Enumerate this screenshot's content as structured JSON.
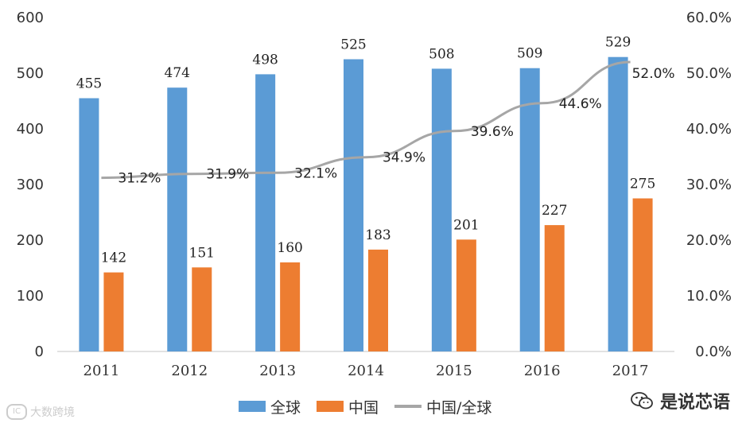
{
  "chart_data": {
    "type": "bar",
    "categories": [
      "2011",
      "2012",
      "2013",
      "2014",
      "2015",
      "2016",
      "2017"
    ],
    "series": [
      {
        "name": "全球",
        "type": "bar",
        "axis": "left",
        "color": "#5b9bd5",
        "values": [
          455,
          474,
          498,
          525,
          508,
          509,
          529
        ],
        "labels": [
          "455",
          "474",
          "498",
          "525",
          "508",
          "509",
          "529"
        ]
      },
      {
        "name": "中国",
        "type": "bar",
        "axis": "left",
        "color": "#ed7d31",
        "values": [
          142,
          151,
          160,
          183,
          201,
          227,
          275
        ],
        "labels": [
          "142",
          "151",
          "160",
          "183",
          "201",
          "227",
          "275"
        ]
      },
      {
        "name": "中国/全球",
        "type": "line",
        "axis": "right",
        "color": "#a6a6a6",
        "values": [
          31.2,
          31.9,
          32.1,
          34.9,
          39.6,
          44.6,
          52.0
        ],
        "labels": [
          "31.2%",
          "31.9%",
          "32.1%",
          "34.9%",
          "39.6%",
          "44.6%",
          "52.0%"
        ]
      }
    ],
    "ylim": [
      0,
      600
    ],
    "y_ticks": [
      "0",
      "100",
      "200",
      "300",
      "400",
      "500",
      "600"
    ],
    "y2lim": [
      0,
      60
    ],
    "y2_ticks": [
      "0.0%",
      "10.0%",
      "20.0%",
      "30.0%",
      "40.0%",
      "50.0%",
      "60.0%"
    ],
    "legend_position": "bottom"
  },
  "legend": {
    "items": [
      {
        "label": "全球",
        "color": "#5b9bd5"
      },
      {
        "label": "中国",
        "color": "#ed7d31"
      },
      {
        "label": "中国/全球",
        "color": "#a6a6a6"
      }
    ]
  },
  "watermark": {
    "left": "大数跨境",
    "left_logo": "IC",
    "right": "是说芯语"
  }
}
